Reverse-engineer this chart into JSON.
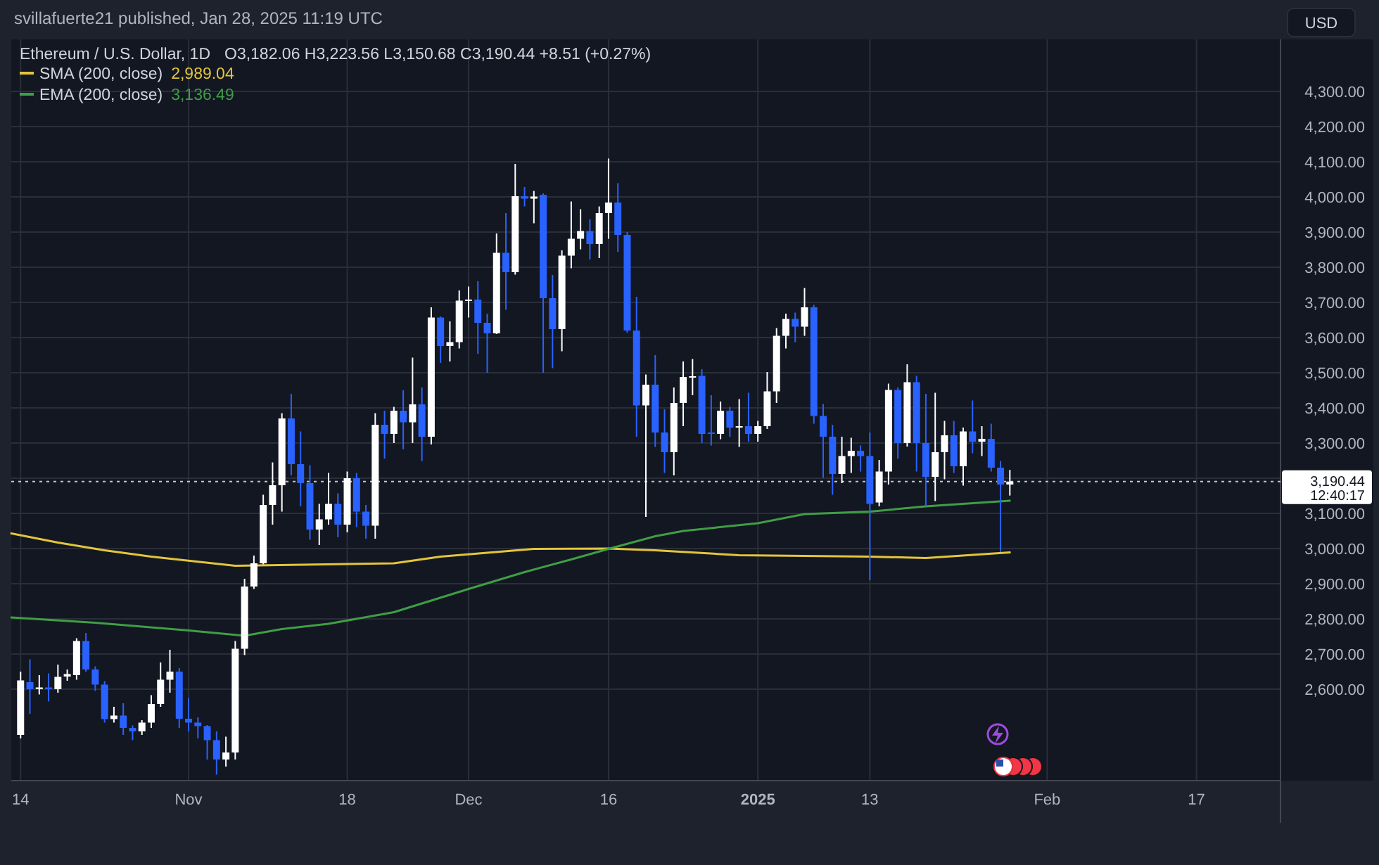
{
  "chart_data": {
    "type": "candlestick",
    "title": "Ethereum / U.S. Dollar, 1D",
    "subtitle": "svillafuerte21 published, Jan 28, 2025 11:19 UTC",
    "ylabel": "USD",
    "annotations": [
      "O3,182.06  H3,223.56  L3,150.68  C3,190.44  +8.51 (+0.27%)",
      "2,989.04",
      "3,136.49",
      "12:40:17"
    ],
    "x": [
      "2024-10-14",
      "2024-10-15",
      "2024-10-16",
      "2024-10-17",
      "2024-10-18",
      "2024-10-19",
      "2024-10-20",
      "2024-10-21",
      "2024-10-22",
      "2024-10-23",
      "2024-10-24",
      "2024-10-25",
      "2024-10-26",
      "2024-10-27",
      "2024-10-28",
      "2024-10-29",
      "2024-10-30",
      "2024-10-31",
      "2024-11-01",
      "2024-11-02",
      "2024-11-03",
      "2024-11-04",
      "2024-11-05",
      "2024-11-06",
      "2024-11-07",
      "2024-11-08",
      "2024-11-09",
      "2024-11-10",
      "2024-11-11",
      "2024-11-12",
      "2024-11-13",
      "2024-11-14",
      "2024-11-15",
      "2024-11-16",
      "2024-11-17",
      "2024-11-18",
      "2024-11-19",
      "2024-11-20",
      "2024-11-21",
      "2024-11-22",
      "2024-11-23",
      "2024-11-24",
      "2024-11-25",
      "2024-11-26",
      "2024-11-27",
      "2024-11-28",
      "2024-11-29",
      "2024-11-30",
      "2024-12-01",
      "2024-12-02",
      "2024-12-03",
      "2024-12-04",
      "2024-12-05",
      "2024-12-06",
      "2024-12-07",
      "2024-12-08",
      "2024-12-09",
      "2024-12-10",
      "2024-12-11",
      "2024-12-12",
      "2024-12-13",
      "2024-12-14",
      "2024-12-15",
      "2024-12-16",
      "2024-12-17",
      "2024-12-18",
      "2024-12-19",
      "2024-12-20",
      "2024-12-21",
      "2024-12-22",
      "2024-12-23",
      "2024-12-24",
      "2024-12-25",
      "2024-12-26",
      "2024-12-27",
      "2024-12-28",
      "2024-12-29",
      "2024-12-30",
      "2024-12-31",
      "2025-01-01",
      "2025-01-02",
      "2025-01-03",
      "2025-01-04",
      "2025-01-05",
      "2025-01-06",
      "2025-01-07",
      "2025-01-08",
      "2025-01-09",
      "2025-01-10",
      "2025-01-11",
      "2025-01-12",
      "2025-01-13",
      "2025-01-14",
      "2025-01-15",
      "2025-01-16",
      "2025-01-17",
      "2025-01-18",
      "2025-01-19",
      "2025-01-20",
      "2025-01-21",
      "2025-01-22",
      "2025-01-23",
      "2025-01-24",
      "2025-01-25",
      "2025-01-26",
      "2025-01-27",
      "2025-01-28"
    ],
    "ohlc": [
      [
        2470,
        2650,
        2460,
        2625
      ],
      [
        2620,
        2685,
        2530,
        2600
      ],
      [
        2600,
        2640,
        2585,
        2605
      ],
      [
        2605,
        2645,
        2565,
        2600
      ],
      [
        2600,
        2670,
        2590,
        2635
      ],
      [
        2636,
        2656,
        2624,
        2643
      ],
      [
        2640,
        2745,
        2627,
        2737
      ],
      [
        2737,
        2760,
        2650,
        2656
      ],
      [
        2656,
        2665,
        2595,
        2613
      ],
      [
        2613,
        2623,
        2505,
        2515
      ],
      [
        2515,
        2550,
        2505,
        2525
      ],
      [
        2525,
        2560,
        2470,
        2490
      ],
      [
        2490,
        2497,
        2455,
        2480
      ],
      [
        2480,
        2512,
        2470,
        2505
      ],
      [
        2505,
        2583,
        2490,
        2558
      ],
      [
        2558,
        2676,
        2550,
        2627
      ],
      [
        2627,
        2712,
        2590,
        2650
      ],
      [
        2650,
        2660,
        2490,
        2516
      ],
      [
        2516,
        2575,
        2480,
        2505
      ],
      [
        2505,
        2520,
        2460,
        2495
      ],
      [
        2495,
        2498,
        2400,
        2455
      ],
      [
        2455,
        2480,
        2357,
        2400
      ],
      [
        2400,
        2465,
        2380,
        2420
      ],
      [
        2420,
        2737,
        2400,
        2715
      ],
      [
        2715,
        2914,
        2697,
        2892
      ],
      [
        2892,
        2980,
        2885,
        2958
      ],
      [
        2958,
        3153,
        2955,
        3124
      ],
      [
        3124,
        3245,
        3068,
        3180
      ],
      [
        3180,
        3385,
        3105,
        3370
      ],
      [
        3370,
        3440,
        3208,
        3240
      ],
      [
        3240,
        3333,
        3120,
        3186
      ],
      [
        3186,
        3237,
        3025,
        3054
      ],
      [
        3054,
        3127,
        3010,
        3083
      ],
      [
        3083,
        3215,
        3068,
        3127
      ],
      [
        3127,
        3157,
        3032,
        3068
      ],
      [
        3068,
        3219,
        3046,
        3200
      ],
      [
        3200,
        3215,
        3061,
        3105
      ],
      [
        3105,
        3124,
        3028,
        3065
      ],
      [
        3065,
        3385,
        3028,
        3352
      ],
      [
        3352,
        3392,
        3256,
        3326
      ],
      [
        3326,
        3403,
        3300,
        3392
      ],
      [
        3392,
        3450,
        3282,
        3359
      ],
      [
        3359,
        3543,
        3300,
        3410
      ],
      [
        3410,
        3458,
        3249,
        3318
      ],
      [
        3318,
        3686,
        3296,
        3657
      ],
      [
        3657,
        3660,
        3528,
        3576
      ],
      [
        3576,
        3646,
        3532,
        3587
      ],
      [
        3587,
        3734,
        3569,
        3705
      ],
      [
        3705,
        3745,
        3657,
        3708
      ],
      [
        3708,
        3760,
        3554,
        3642
      ],
      [
        3642,
        3668,
        3500,
        3612
      ],
      [
        3612,
        3896,
        3610,
        3841
      ],
      [
        3841,
        3954,
        3679,
        3786
      ],
      [
        3786,
        4094,
        3779,
        4002
      ],
      [
        4002,
        4028,
        3973,
        3995
      ],
      [
        3995,
        4017,
        3925,
        4001
      ],
      [
        4006,
        4010,
        3500,
        3712
      ],
      [
        3712,
        3778,
        3513,
        3624
      ],
      [
        3624,
        3848,
        3561,
        3833
      ],
      [
        3833,
        3987,
        3797,
        3881
      ],
      [
        3881,
        3965,
        3851,
        3903
      ],
      [
        3903,
        3936,
        3822,
        3866
      ],
      [
        3866,
        3973,
        3826,
        3954
      ],
      [
        3954,
        4109,
        3881,
        3984
      ],
      [
        3984,
        4039,
        3844,
        3892
      ],
      [
        3892,
        3900,
        3614,
        3620
      ],
      [
        3620,
        3716,
        3318,
        3407
      ],
      [
        3407,
        3495,
        3090,
        3466
      ],
      [
        3466,
        3550,
        3289,
        3330
      ],
      [
        3330,
        3396,
        3215,
        3274
      ],
      [
        3274,
        3458,
        3208,
        3414
      ],
      [
        3414,
        3532,
        3348,
        3488
      ],
      [
        3486,
        3539,
        3436,
        3490
      ],
      [
        3491,
        3510,
        3300,
        3326
      ],
      [
        3330,
        3436,
        3293,
        3326
      ],
      [
        3326,
        3418,
        3311,
        3392
      ],
      [
        3392,
        3403,
        3318,
        3344
      ],
      [
        3344,
        3425,
        3289,
        3348
      ],
      [
        3348,
        3443,
        3304,
        3326
      ],
      [
        3326,
        3363,
        3304,
        3348
      ],
      [
        3348,
        3502,
        3340,
        3447
      ],
      [
        3447,
        3627,
        3414,
        3605
      ],
      [
        3605,
        3668,
        3569,
        3653
      ],
      [
        3653,
        3671,
        3587,
        3631
      ],
      [
        3631,
        3741,
        3605,
        3686
      ],
      [
        3686,
        3693,
        3355,
        3377
      ],
      [
        3377,
        3411,
        3201,
        3318
      ],
      [
        3318,
        3352,
        3153,
        3212
      ],
      [
        3212,
        3318,
        3186,
        3263
      ],
      [
        3263,
        3315,
        3215,
        3278
      ],
      [
        3278,
        3293,
        3219,
        3263
      ],
      [
        3263,
        3330,
        2910,
        3127
      ],
      [
        3131,
        3252,
        3120,
        3219
      ],
      [
        3219,
        3469,
        3182,
        3451
      ],
      [
        3451,
        3458,
        3256,
        3300
      ],
      [
        3300,
        3524,
        3290,
        3473
      ],
      [
        3473,
        3491,
        3219,
        3300
      ],
      [
        3300,
        3440,
        3120,
        3204
      ],
      [
        3204,
        3443,
        3135,
        3274
      ],
      [
        3274,
        3363,
        3197,
        3322
      ],
      [
        3322,
        3363,
        3215,
        3234
      ],
      [
        3234,
        3344,
        3179,
        3333
      ],
      [
        3333,
        3421,
        3271,
        3304
      ],
      [
        3304,
        3348,
        3263,
        3312
      ],
      [
        3312,
        3355,
        3219,
        3230
      ],
      [
        3230,
        3249,
        2990,
        3182
      ],
      [
        3182.06,
        3223.56,
        3150.68,
        3190.44
      ]
    ],
    "series": [
      {
        "name": "SMA (200, close)",
        "type": "line",
        "color": "#e3c53a",
        "x": [
          "2024-10-13",
          "2024-10-18",
          "2024-10-23",
          "2024-10-28",
          "2024-11-06",
          "2024-11-23",
          "2024-11-28",
          "2024-12-08",
          "2024-12-16",
          "2024-12-21",
          "2024-12-30",
          "2025-01-13",
          "2025-01-19",
          "2025-01-28"
        ],
        "values": [
          3043,
          3017,
          2995,
          2977,
          2951,
          2958,
          2977,
          2999,
          3000,
          2995,
          2981,
          2977,
          2973,
          2989
        ]
      },
      {
        "name": "EMA (200, close)",
        "type": "line",
        "color": "#3f9e45",
        "x": [
          "2024-10-13",
          "2024-10-22",
          "2024-11-01",
          "2024-11-07",
          "2024-11-11",
          "2024-11-16",
          "2024-11-23",
          "2024-12-01",
          "2024-12-07",
          "2024-12-12",
          "2024-12-16",
          "2024-12-21",
          "2024-12-24",
          "2025-01-01",
          "2025-01-06",
          "2025-01-13",
          "2025-01-19",
          "2025-01-28"
        ],
        "values": [
          2804,
          2789,
          2767,
          2752,
          2771,
          2786,
          2819,
          2885,
          2933,
          2969,
          2999,
          3035,
          3050,
          3072,
          3098,
          3105,
          3120,
          3136
        ]
      }
    ],
    "ref_lines": [
      {
        "axis": "y",
        "value": 3190.44,
        "label": "3,190.44",
        "line_style": "dotted",
        "color": "#c8c8c8"
      }
    ],
    "xlim": [
      "2024-10-13",
      "2025-02-26"
    ],
    "xticks": [
      {
        "value": "2024-10-14",
        "label": "14"
      },
      {
        "value": "2024-11-01",
        "label": "Nov"
      },
      {
        "value": "2024-11-18",
        "label": "18"
      },
      {
        "value": "2024-12-01",
        "label": "Dec"
      },
      {
        "value": "2024-12-16",
        "label": "16"
      },
      {
        "value": "2025-01-01",
        "label": "2025"
      },
      {
        "value": "2025-01-13",
        "label": "13"
      },
      {
        "value": "2025-02-01",
        "label": "Feb"
      },
      {
        "value": "2025-02-17",
        "label": "17"
      }
    ],
    "ylim": [
      2340,
      4440
    ],
    "yticks": [
      {
        "value": 2600,
        "label": "2,600.00"
      },
      {
        "value": 2700,
        "label": "2,700.00"
      },
      {
        "value": 2800,
        "label": "2,800.00"
      },
      {
        "value": 2900,
        "label": "2,900.00"
      },
      {
        "value": 3000,
        "label": "3,000.00"
      },
      {
        "value": 3100,
        "label": "3,100.00"
      },
      {
        "value": 3200,
        "label": null
      },
      {
        "value": 3300,
        "label": "3,300.00"
      },
      {
        "value": 3400,
        "label": "3,400.00"
      },
      {
        "value": 3500,
        "label": "3,500.00"
      },
      {
        "value": 3600,
        "label": "3,600.00"
      },
      {
        "value": 3700,
        "label": "3,700.00"
      },
      {
        "value": 3800,
        "label": "3,800.00"
      },
      {
        "value": 3900,
        "label": "3,900.00"
      },
      {
        "value": 4000,
        "label": "4,000.00"
      },
      {
        "value": 4100,
        "label": "4,100.00"
      },
      {
        "value": 4200,
        "label": "4,200.00"
      },
      {
        "value": 4300,
        "label": "4,300.00"
      }
    ],
    "grid": true,
    "legend": "top left",
    "marker": "none",
    "line_style": "solid"
  }
}
